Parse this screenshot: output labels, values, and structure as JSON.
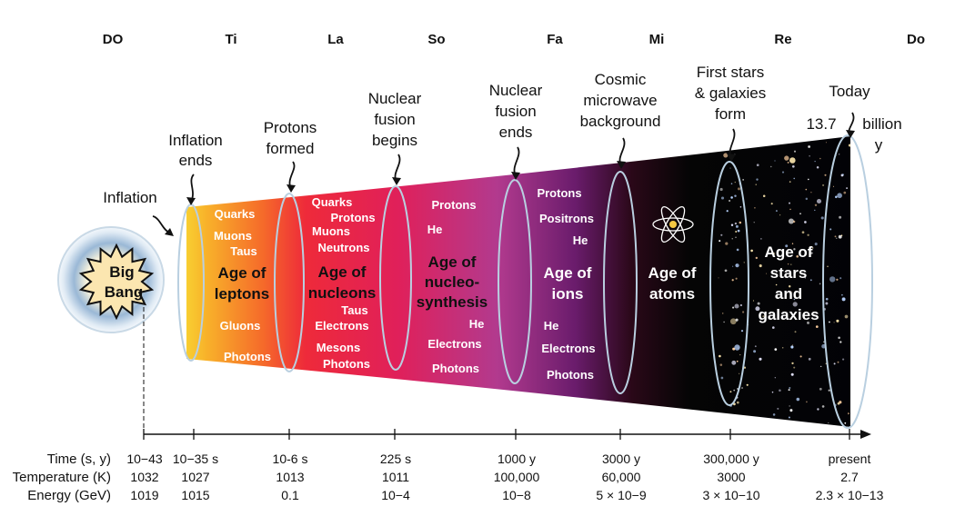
{
  "solfege": [
    "DO",
    "Ti",
    "La",
    "So",
    "Fa",
    "Mi",
    "Re",
    "Do"
  ],
  "big_bang": {
    "line1": "Big",
    "line2": "Bang"
  },
  "callouts": {
    "inflation": "Inflation",
    "inflation_ends": [
      "Inflation",
      "ends"
    ],
    "protons_formed": [
      "Protons",
      "formed"
    ],
    "fusion_begins": [
      "Nuclear",
      "fusion",
      "begins"
    ],
    "fusion_ends": [
      "Nuclear",
      "fusion",
      "ends"
    ],
    "cmb": [
      "Cosmic",
      "microwave",
      "background"
    ],
    "first_stars": [
      "First stars",
      "& galaxies",
      "form"
    ],
    "today": "Today",
    "age_value": "13.7",
    "age_unit1": "billion",
    "age_unit2": "y"
  },
  "eras": {
    "leptons": {
      "title": [
        "Age of",
        "leptons"
      ],
      "particles": [
        "Quarks",
        "Muons",
        "Taus",
        "Gluons",
        "Photons"
      ]
    },
    "nucleons": {
      "title": [
        "Age of",
        "nucleons"
      ],
      "particles": [
        "Quarks",
        "Protons",
        "Muons",
        "Neutrons",
        "Taus",
        "Electrons",
        "Mesons",
        "Photons"
      ]
    },
    "nucleosynthesis": {
      "title": [
        "Age of",
        "nucleo-",
        "synthesis"
      ],
      "particles": [
        "Protons",
        "He",
        "He",
        "Electrons",
        "Photons"
      ]
    },
    "ions": {
      "title": [
        "Age of",
        "ions"
      ],
      "particles": [
        "Protons",
        "Positrons",
        "He",
        "He",
        "Electrons",
        "Photons"
      ]
    },
    "atoms": {
      "title": [
        "Age of",
        "atoms"
      ]
    },
    "stars": {
      "title": [
        "Age of",
        "stars",
        "and",
        "galaxies"
      ]
    }
  },
  "axis": {
    "row_labels": [
      "Time (s, y)",
      "Temperature (K)",
      "Energy (GeV)"
    ],
    "columns": [
      {
        "time": "10−43",
        "temp": "1032",
        "energy": "1019"
      },
      {
        "time": "10−35 s",
        "temp": "1027",
        "energy": "1015"
      },
      {
        "time": "10-6 s",
        "temp": "1013",
        "energy": "0.1"
      },
      {
        "time": "225 s",
        "temp": "1011",
        "energy": "10−4"
      },
      {
        "time": "1000 y",
        "temp": "100,000",
        "energy": "10−8"
      },
      {
        "time": "3000 y",
        "temp": "60,000",
        "energy": "5 × 10−9"
      },
      {
        "time": "300,000 y",
        "temp": "3000",
        "energy": "3 × 10−10"
      },
      {
        "time": "present",
        "temp": "2.7",
        "energy": "2.3 × 10−13"
      }
    ]
  }
}
